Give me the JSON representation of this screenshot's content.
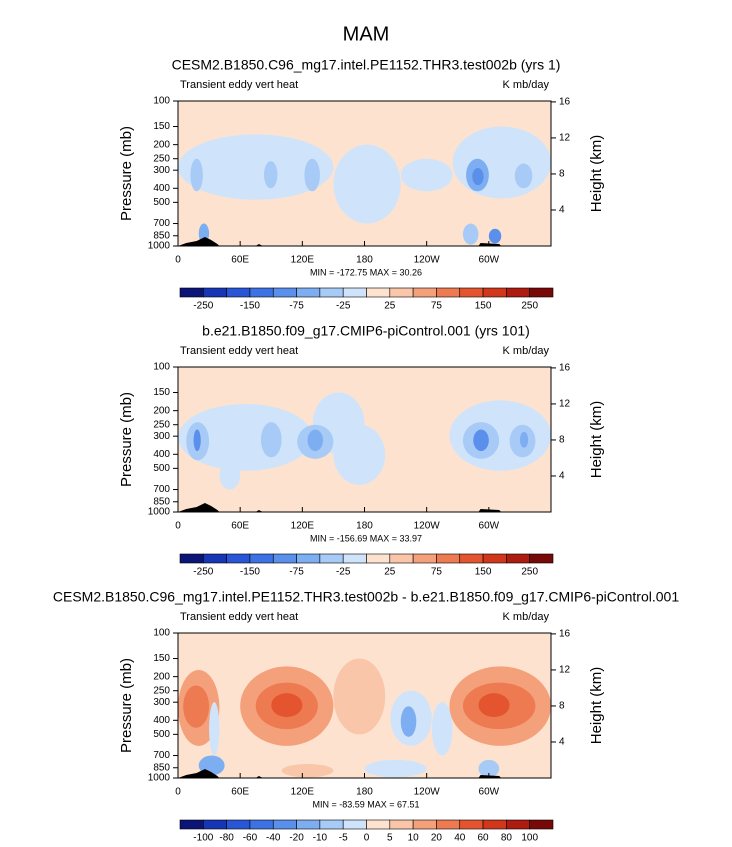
{
  "title": "MAM",
  "chart_data": [
    {
      "type": "contour",
      "title": "CESM2.B1850.C96_mg17.intel.PE1152.THR3.test002b (yrs 1)",
      "left_label": "Transient eddy vert heat",
      "right_label": "K mb/day",
      "y_label": "Pressure (mb)",
      "y2_label": "Height (km)",
      "stats": "MIN = -172.75 MAX = 30.26",
      "xlim": [
        0,
        360
      ],
      "xticks": [
        0,
        {
          "value": 60,
          "label": "60E"
        },
        {
          "value": 120,
          "label": "120E"
        },
        180,
        {
          "value": 240,
          "label": "120W"
        },
        {
          "value": 300,
          "label": "60W"
        }
      ],
      "ylim": [
        1000,
        100
      ],
      "log_y": true,
      "yticks": [
        100,
        150,
        200,
        250,
        300,
        400,
        500,
        700,
        850,
        1000
      ],
      "y2lim": [
        0,
        16.1
      ],
      "y2ticks": [
        4,
        8,
        12,
        16
      ],
      "colorbar": {
        "levels": [
          -250,
          -150,
          -75,
          -25,
          25,
          75,
          150,
          250
        ],
        "colors": [
          "#0c1478",
          "#1736b5",
          "#2856d6",
          "#3d72e4",
          "#5a90ec",
          "#7eaef2",
          "#a7cbf6",
          "#cfe4fa",
          "#fde3cf",
          "#f9c6aa",
          "#f4a07b",
          "#ed7a51",
          "#e4552f",
          "#d1371b",
          "#ae1b10",
          "#780909"
        ]
      }
    },
    {
      "type": "contour",
      "title": "b.e21.B1850.f09_g17.CMIP6-piControl.001 (yrs 101)",
      "left_label": "Transient eddy vert heat",
      "right_label": "K mb/day",
      "y_label": "Pressure (mb)",
      "y2_label": "Height (km)",
      "stats": "MIN = -156.69 MAX = 33.97",
      "xlim": [
        0,
        360
      ],
      "xticks": [
        0,
        {
          "value": 60,
          "label": "60E"
        },
        {
          "value": 120,
          "label": "120E"
        },
        180,
        {
          "value": 240,
          "label": "120W"
        },
        {
          "value": 300,
          "label": "60W"
        }
      ],
      "ylim": [
        1000,
        100
      ],
      "log_y": true,
      "yticks": [
        100,
        150,
        200,
        250,
        300,
        400,
        500,
        700,
        850,
        1000
      ],
      "y2lim": [
        0,
        16.1
      ],
      "y2ticks": [
        4,
        8,
        12,
        16
      ],
      "colorbar": {
        "levels": [
          -250,
          -150,
          -75,
          -25,
          25,
          75,
          150,
          250
        ],
        "colors": [
          "#0c1478",
          "#1736b5",
          "#2856d6",
          "#3d72e4",
          "#5a90ec",
          "#7eaef2",
          "#a7cbf6",
          "#cfe4fa",
          "#fde3cf",
          "#f9c6aa",
          "#f4a07b",
          "#ed7a51",
          "#e4552f",
          "#d1371b",
          "#ae1b10",
          "#780909"
        ]
      }
    },
    {
      "type": "contour",
      "title": "CESM2.B1850.C96_mg17.intel.PE1152.THR3.test002b - b.e21.B1850.f09_g17.CMIP6-piControl.001",
      "left_label": "Transient eddy vert heat",
      "right_label": "K mb/day",
      "y_label": "Pressure (mb)",
      "y2_label": "Height (km)",
      "stats": "MIN = -83.59 MAX = 67.51",
      "xlim": [
        0,
        360
      ],
      "xticks": [
        0,
        {
          "value": 60,
          "label": "60E"
        },
        {
          "value": 120,
          "label": "120E"
        },
        180,
        {
          "value": 240,
          "label": "120W"
        },
        {
          "value": 300,
          "label": "60W"
        }
      ],
      "ylim": [
        1000,
        100
      ],
      "log_y": true,
      "yticks": [
        100,
        150,
        200,
        250,
        300,
        400,
        500,
        700,
        850,
        1000
      ],
      "y2lim": [
        0,
        16.1
      ],
      "y2ticks": [
        4,
        8,
        12,
        16
      ],
      "colorbar": {
        "levels": [
          -100,
          -80,
          -60,
          -40,
          -20,
          -10,
          -5,
          0,
          5,
          10,
          20,
          40,
          60,
          80,
          100
        ],
        "colors": [
          "#0c1478",
          "#1736b5",
          "#2856d6",
          "#3d72e4",
          "#5a90ec",
          "#7eaef2",
          "#a7cbf6",
          "#cfe4fa",
          "#fde3cf",
          "#f9c6aa",
          "#f4a07b",
          "#ed7a51",
          "#e4552f",
          "#d1371b",
          "#ae1b10",
          "#780909"
        ]
      }
    }
  ]
}
